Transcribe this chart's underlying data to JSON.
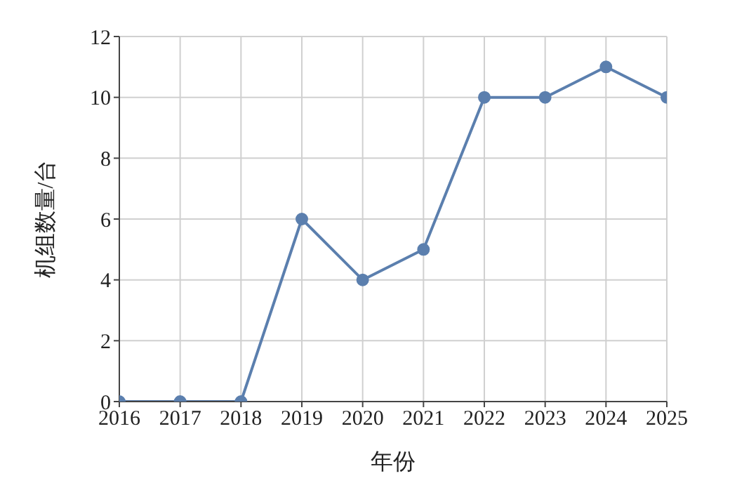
{
  "chart_data": {
    "type": "line",
    "xlabel": "年份",
    "ylabel": "机组数量/台",
    "x": [
      2016,
      2017,
      2018,
      2019,
      2020,
      2021,
      2022,
      2023,
      2024,
      2025
    ],
    "series": [
      {
        "color": "#5b7fae",
        "values": [
          0,
          0,
          0,
          6,
          4,
          5,
          10,
          10,
          11,
          10
        ]
      }
    ],
    "xlim": [
      2016,
      2025
    ],
    "xticks": [
      2016,
      2017,
      2018,
      2019,
      2020,
      2021,
      2022,
      2023,
      2024,
      2025
    ],
    "ylim": [
      0,
      12
    ],
    "yticks": [
      0,
      2,
      4,
      6,
      8,
      10,
      12
    ],
    "grid": true,
    "marker": "circle",
    "line_style": "solid"
  }
}
